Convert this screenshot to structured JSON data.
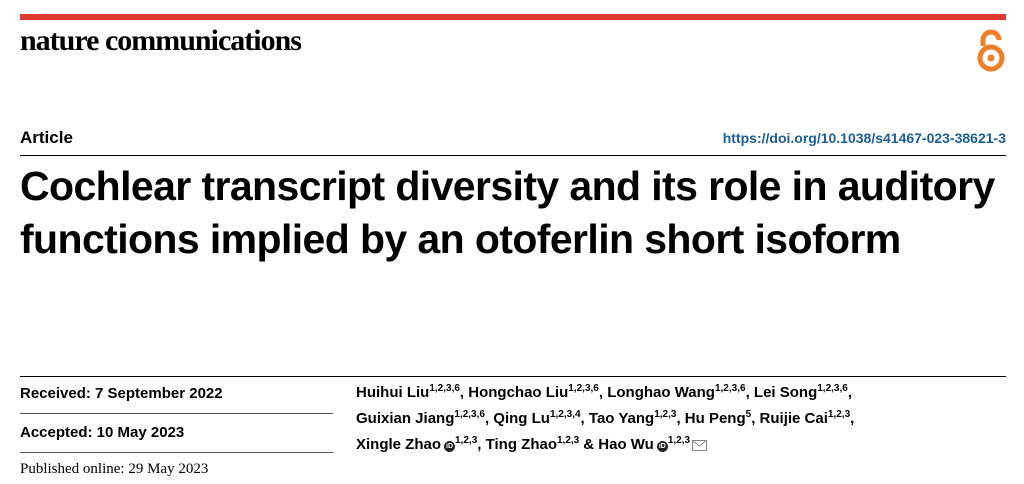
{
  "header": {
    "journal": "nature communications"
  },
  "article": {
    "type": "Article",
    "doi": "https://doi.org/10.1038/s41467-023-38621-3",
    "title": "Cochlear transcript diversity and its role in auditory functions implied by an otoferlin short isoform"
  },
  "dates": {
    "received": "Received: 7 September 2022",
    "accepted": "Accepted: 10 May 2023",
    "published": "Published online: 29 May 2023"
  },
  "authors": [
    {
      "name": "Huihui Liu",
      "affiliations": "1,2,3,6",
      "sep": ","
    },
    {
      "name": "Hongchao Liu",
      "affiliations": "1,2,3,6",
      "sep": ","
    },
    {
      "name": "Longhao Wang",
      "affiliations": "1,2,3,6",
      "sep": ","
    },
    {
      "name": "Lei Song",
      "affiliations": "1,2,3,6",
      "sep": ","
    },
    {
      "name": "Guixian Jiang",
      "affiliations": "1,2,3,6",
      "sep": ","
    },
    {
      "name": "Qing Lu",
      "affiliations": "1,2,3,4",
      "sep": ","
    },
    {
      "name": "Tao Yang",
      "affiliations": "1,2,3",
      "sep": ","
    },
    {
      "name": "Hu Peng",
      "affiliations": "5",
      "sep": ","
    },
    {
      "name": "Ruijie Cai",
      "affiliations": "1,2,3",
      "sep": ","
    },
    {
      "name": "Xingle Zhao",
      "affiliations": "1,2,3",
      "orcid": true,
      "sep": ","
    },
    {
      "name": "Ting Zhao",
      "affiliations": "1,2,3",
      "sep": "&"
    },
    {
      "name": "Hao Wu",
      "affiliations": "1,2,3",
      "orcid": true,
      "corresponding": true
    }
  ]
}
